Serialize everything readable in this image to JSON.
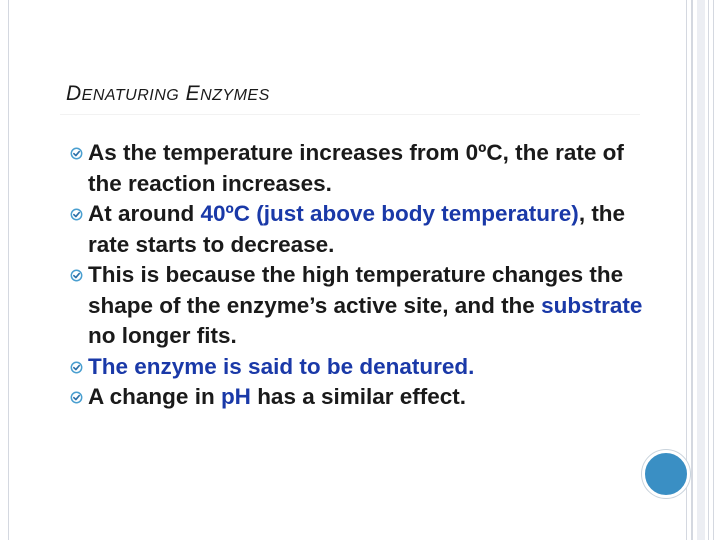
{
  "slide": {
    "title": {
      "word1_cap": "D",
      "word1_rest": "ENATURING",
      "word2_cap": "E",
      "word2_rest": "NZYMES"
    },
    "bullets": [
      {
        "parts": [
          {
            "text": "As the temperature increases from 0ºC, the rate of the reaction increases.",
            "color": "#1a1a1a"
          }
        ]
      },
      {
        "parts": [
          {
            "text": "At around ",
            "color": "#1a1a1a"
          },
          {
            "text": "40ºC (just above body temperature)",
            "color": "#1a39a8"
          },
          {
            "text": ", the rate starts to decrease.",
            "color": "#1a1a1a"
          }
        ]
      },
      {
        "parts": [
          {
            "text": "This is because the high temperature changes the shape of the enzyme’s active site, and the ",
            "color": "#1a1a1a"
          },
          {
            "text": "substrate",
            "color": "#1a39a8"
          },
          {
            "text": " no longer fits.",
            "color": "#1a1a1a"
          }
        ]
      },
      {
        "parts": [
          {
            "text": "The enzyme is said to be denatured.",
            "color": "#1a39a8"
          }
        ]
      },
      {
        "parts": [
          {
            "text": "A change in ",
            "color": "#1a1a1a"
          },
          {
            "text": "pH",
            "color": "#1a39a8"
          },
          {
            "text": " has a similar effect.",
            "color": "#1a1a1a"
          }
        ]
      }
    ],
    "bullet_icon": "circle-check-icon",
    "accent_color": "#3a8fc4",
    "decor_icon": "blue-circle-icon"
  }
}
